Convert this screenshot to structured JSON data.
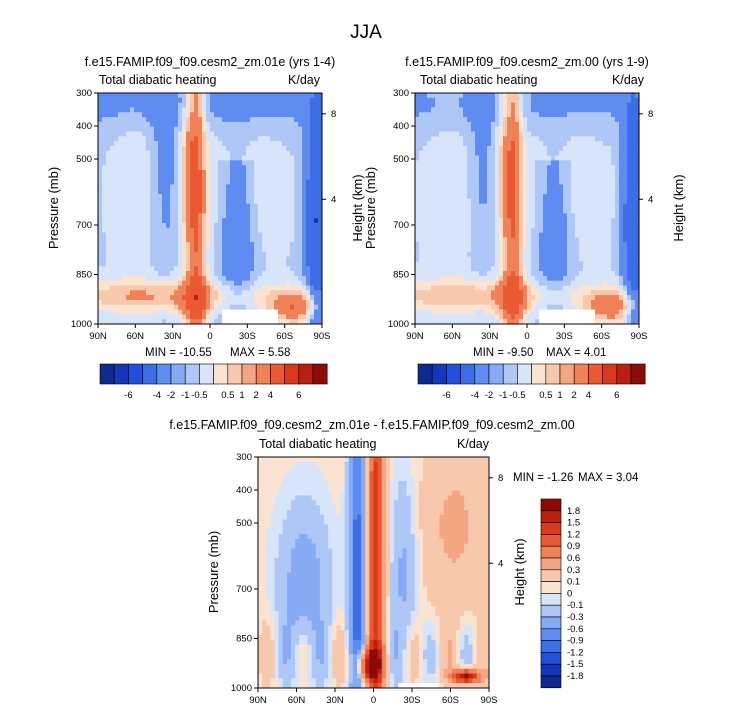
{
  "page": {
    "title": "JJA"
  },
  "colors": {
    "neg": [
      "#0d2a8e",
      "#1536b8",
      "#2350db",
      "#3d6ee6",
      "#5e8cf0",
      "#86aaf3",
      "#aec7f6",
      "#d7e4fa"
    ],
    "pos": [
      "#fbe3d2",
      "#f8c8ac",
      "#f4a683",
      "#f08159",
      "#ea5a32",
      "#d9381a",
      "#ba200f",
      "#8e0a06"
    ],
    "diff_neg": [
      "#0d2a8e",
      "#1536b8",
      "#2350db",
      "#3d6ee6",
      "#5e8cf0",
      "#86aaf3",
      "#aec7f6",
      "#d7e4fa"
    ],
    "diff_pos": [
      "#fbe3d2",
      "#f8c8ac",
      "#f4a683",
      "#f08159",
      "#ea5a32",
      "#d9381a",
      "#ba200f",
      "#8e0a06"
    ]
  },
  "chart_data": [
    {
      "type": "heatmap",
      "title": "f.e15.FAMIP.f09_f09.cesm2_zm.01e (yrs 1-4)",
      "left_label": "Total diabatic heating",
      "units": "K/day",
      "ylabel": "Pressure (mb)",
      "ylabel_right": "Height (km)",
      "ylim": [
        1000,
        300
      ],
      "yticks": [
        300,
        400,
        500,
        700,
        850,
        1000
      ],
      "height_ticks": [
        8,
        4
      ],
      "xticks": [
        "90N",
        "60N",
        "30N",
        "0",
        "30S",
        "60S",
        "90S"
      ],
      "stats": {
        "min_label": "MIN = -10.55",
        "max_label": "MAX =  5.58"
      },
      "amp": 1.0
    },
    {
      "type": "heatmap",
      "title": "f.e15.FAMIP.f09_f09.cesm2_zm.00 (yrs 1-9)",
      "left_label": "Total diabatic heating",
      "units": "K/day",
      "ylabel": "Pressure (mb)",
      "ylabel_right": "Height (km)",
      "ylim": [
        1000,
        300
      ],
      "yticks": [
        300,
        400,
        500,
        700,
        850,
        1000
      ],
      "height_ticks": [
        8,
        4
      ],
      "xticks": [
        "90N",
        "60N",
        "30N",
        "0",
        "30S",
        "60S",
        "90S"
      ],
      "stats": {
        "min_label": "MIN = -9.50",
        "max_label": "MAX =  4.01"
      },
      "amp": 0.92
    },
    {
      "type": "heatmap",
      "title": "f.e15.FAMIP.f09_f09.cesm2_zm.01e - f.e15.FAMIP.f09_f09.cesm2_zm.00",
      "left_label": "Total diabatic heating",
      "units": "K/day",
      "ylabel": "Pressure (mb)",
      "ylabel_right": "Height (km)",
      "ylim": [
        1000,
        300
      ],
      "yticks": [
        300,
        400,
        500,
        700,
        850,
        1000
      ],
      "height_ticks": [
        8,
        4
      ],
      "xticks": [
        "90N",
        "60N",
        "30N",
        "0",
        "30S",
        "60S",
        "90S"
      ],
      "stats": {
        "min_label": "MIN =  -1.26",
        "max_label": "MAX =  3.04"
      },
      "amp": 1.0
    }
  ],
  "colorbar_main": {
    "labels": [
      "-6",
      "-4",
      "-2",
      "-1",
      "-0.5",
      "0.5",
      "1",
      "2",
      "4",
      "6"
    ]
  },
  "colorbar_diff": {
    "labels": [
      "1.8",
      "1.5",
      "1.2",
      "0.9",
      "0.6",
      "0.3",
      "0.1",
      "0",
      "-0.1",
      "-0.3",
      "-0.6",
      "-0.9",
      "-1.2",
      "-1.5",
      "-1.8"
    ]
  }
}
